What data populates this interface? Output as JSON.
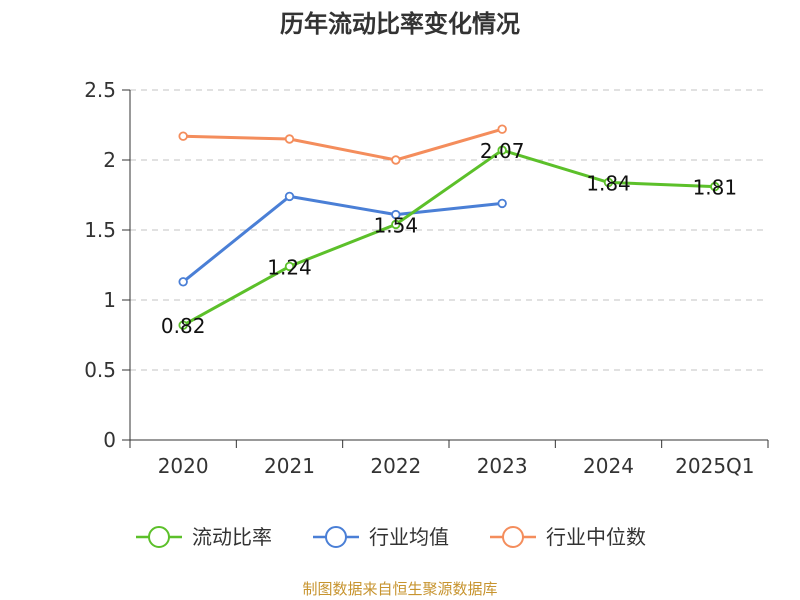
{
  "chart_data": {
    "type": "line",
    "title": "历年流动比率变化情况",
    "categories": [
      "2020",
      "2021",
      "2022",
      "2023",
      "2024",
      "2025Q1"
    ],
    "y_ticks": [
      "0",
      "0.5",
      "1",
      "1.5",
      "2",
      "2.5"
    ],
    "ylim": [
      0,
      2.5
    ],
    "grid": true,
    "legend_position": "bottom",
    "series": [
      {
        "name": "流动比率",
        "color": "#5cc02a",
        "values": [
          0.82,
          1.24,
          1.54,
          2.07,
          1.84,
          1.81
        ],
        "labels": [
          "0.82",
          "1.24",
          "1.54",
          "2.07",
          "1.84",
          "1.81"
        ]
      },
      {
        "name": "行业均值",
        "color": "#4a7fd6",
        "values": [
          1.13,
          1.74,
          1.61,
          1.69,
          null,
          null
        ]
      },
      {
        "name": "行业中位数",
        "color": "#f48d5c",
        "values": [
          2.17,
          2.15,
          2.0,
          2.22,
          null,
          null
        ]
      }
    ]
  },
  "source": "制图数据来自恒生聚源数据库"
}
